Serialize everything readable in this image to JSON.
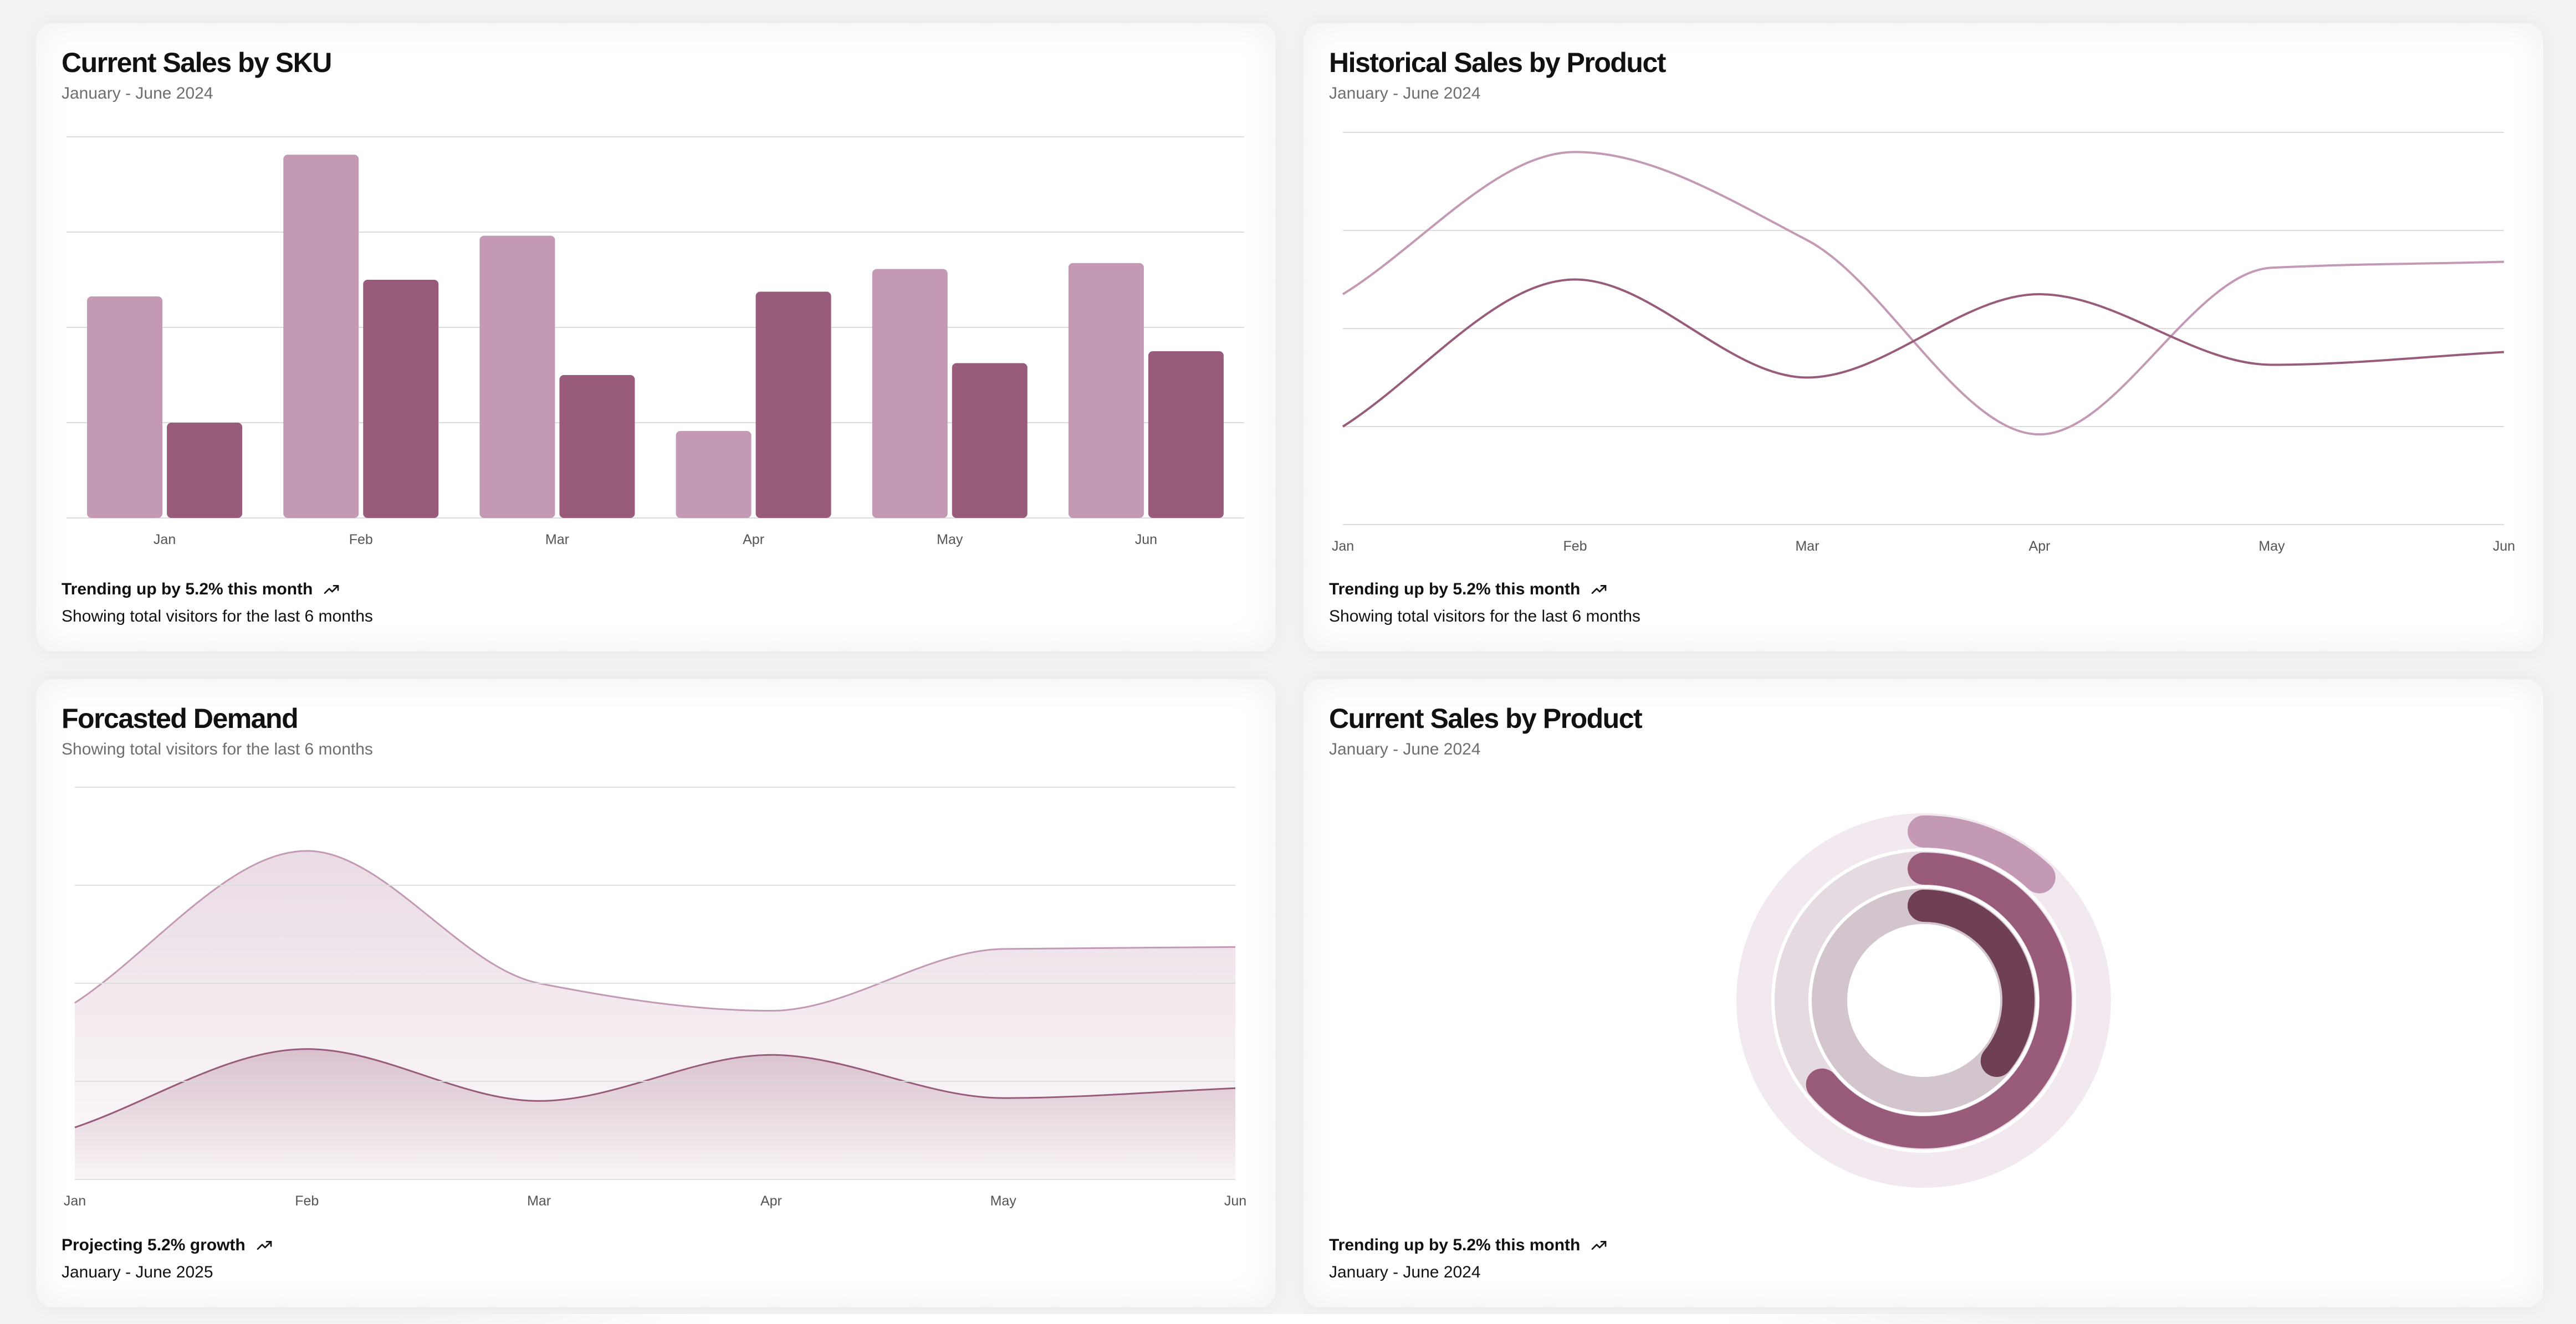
{
  "colors": {
    "light": "#c399b4",
    "dark": "#985c7a",
    "darkest": "#6e3f55",
    "grid": "#dcdcdc"
  },
  "cards": [
    {
      "title": "Current Sales by SKU",
      "subtitle": "January - June 2024",
      "footer_line1": "Trending up by 5.2% this month",
      "footer_line2": "Showing total visitors for the last 6 months",
      "trend_icon": "trending-up-icon"
    },
    {
      "title": "Historical Sales by Product",
      "subtitle": "January - June 2024",
      "footer_line1": "Trending up by 5.2% this month",
      "footer_line2": "Showing total visitors for the last 6 months",
      "trend_icon": "trending-up-icon"
    },
    {
      "title": "Forcasted Demand",
      "subtitle": "Showing total visitors for the last 6 months",
      "footer_line1": "Projecting 5.2% growth",
      "footer_line2": "January - June 2025",
      "trend_icon": "trending-up-icon"
    },
    {
      "title": "Current Sales by Product",
      "subtitle": "January - June 2024",
      "footer_line1": "Trending up by 5.2% this month",
      "footer_line2": "January - June 2024",
      "trend_icon": "trending-up-icon"
    }
  ],
  "chart_data": [
    {
      "type": "bar",
      "categories": [
        "Jan",
        "Feb",
        "Mar",
        "Apr",
        "May",
        "Jun"
      ],
      "series": [
        {
          "values": [
            186,
            305,
            237,
            73,
            209,
            214
          ]
        },
        {
          "values": [
            80,
            200,
            120,
            190,
            130,
            140
          ]
        }
      ],
      "ylim": [
        0,
        320
      ],
      "grid": "horizontal"
    },
    {
      "type": "line",
      "categories": [
        "Jan",
        "Feb",
        "Mar",
        "Apr",
        "May",
        "Jun"
      ],
      "series": [
        {
          "values": [
            235,
            380,
            290,
            92,
            262,
            268
          ]
        },
        {
          "values": [
            100,
            250,
            150,
            235,
            163,
            176
          ]
        }
      ],
      "ylim": [
        0,
        400
      ],
      "grid": "horizontal"
    },
    {
      "type": "area",
      "categories": [
        "Jan",
        "Feb",
        "Mar",
        "Apr",
        "May",
        "Jun"
      ],
      "series": [
        {
          "values": [
            180,
            335,
            200,
            172,
            235,
            237
          ]
        },
        {
          "values": [
            53,
            133,
            80,
            127,
            83,
            93
          ]
        }
      ],
      "ylim": [
        0,
        400
      ],
      "grid": "horizontal"
    },
    {
      "type": "pie",
      "variant": "radial-bars",
      "rings": [
        {
          "value": 0.12
        },
        {
          "value": 0.64
        },
        {
          "value": 0.36
        }
      ]
    }
  ]
}
